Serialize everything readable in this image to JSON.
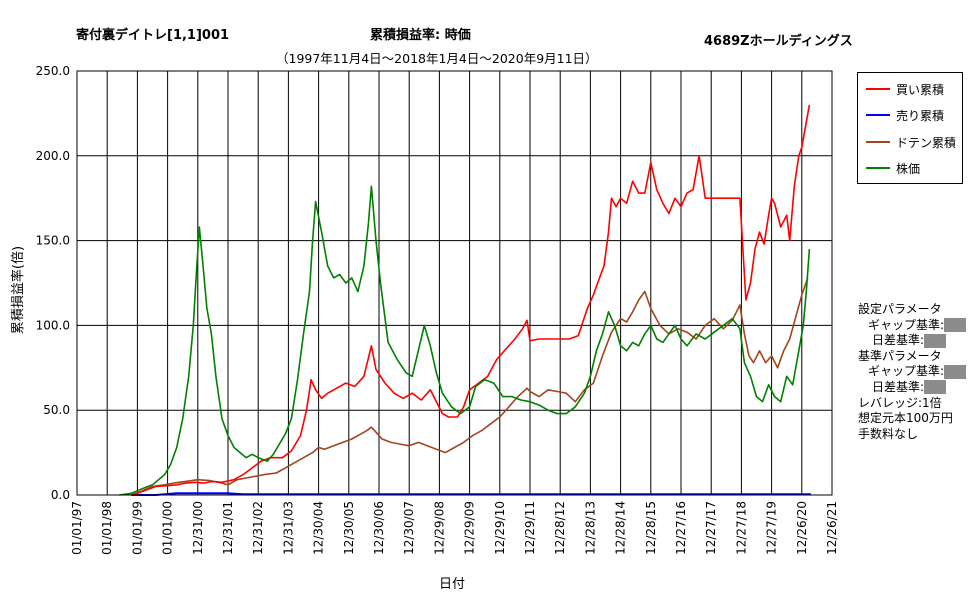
{
  "header": {
    "left_title": "寄付裏デイトレ[1,1]001",
    "center_title": "累積損益率:  時価",
    "right_title": "4689Zホールディングス",
    "subtitle": "（1997年11月4日～2018年1月4日～2020年9月11日）"
  },
  "params": {
    "lines": [
      "設定パラメータ",
      "ギャップ基準:",
      "日差基準:",
      "基準パラメータ",
      "ギャップ基準:",
      "日差基準:",
      "レバレッジ:1倍",
      "想定元本100万円",
      "手数料なし"
    ]
  },
  "colors": {
    "buy": "#ff0000",
    "sell": "#0000ff",
    "doten": "#a0461e",
    "price": "#008000",
    "grid": "#000000",
    "redacted": "#8c8c8c"
  },
  "chart_data": {
    "type": "line",
    "xlabel": "日付",
    "ylabel": "累積損益率(倍)",
    "ylim": [
      0,
      250
    ],
    "ytick_labels": [
      "0.0",
      "50.0",
      "100.0",
      "150.0",
      "200.0",
      "250.0"
    ],
    "xtick_labels": [
      "01/01/97",
      "01/01/98",
      "01/01/99",
      "01/01/00",
      "12/31/00",
      "12/31/01",
      "12/31/02",
      "12/31/03",
      "12/30/04",
      "12/30/05",
      "12/30/06",
      "12/30/07",
      "12/29/08",
      "12/29/09",
      "12/29/10",
      "12/29/11",
      "12/28/12",
      "12/28/13",
      "12/28/14",
      "12/28/15",
      "12/27/16",
      "12/27/17",
      "12/27/18",
      "12/27/19",
      "12/26/20",
      "12/26/21"
    ],
    "grid": true,
    "legend_position": "right",
    "series": [
      {
        "name": "買い累積",
        "key": "buy",
        "points": [
          [
            1.8,
            0
          ],
          [
            2,
            1
          ],
          [
            2.3,
            3
          ],
          [
            2.6,
            5
          ],
          [
            3,
            5.5
          ],
          [
            3.3,
            6
          ],
          [
            3.6,
            7
          ],
          [
            3.9,
            7.5
          ],
          [
            4.2,
            7
          ],
          [
            4.5,
            8
          ],
          [
            4.8,
            7.5
          ],
          [
            5.2,
            9
          ],
          [
            5.5,
            12
          ],
          [
            5.8,
            16
          ],
          [
            6.1,
            20
          ],
          [
            6.4,
            22
          ],
          [
            6.8,
            22
          ],
          [
            7.1,
            26
          ],
          [
            7.4,
            35
          ],
          [
            7.6,
            50
          ],
          [
            7.75,
            68
          ],
          [
            7.9,
            62
          ],
          [
            8.1,
            57
          ],
          [
            8.3,
            60
          ],
          [
            8.6,
            63
          ],
          [
            8.9,
            66
          ],
          [
            9.2,
            64
          ],
          [
            9.5,
            70
          ],
          [
            9.75,
            88
          ],
          [
            9.9,
            74
          ],
          [
            10.2,
            66
          ],
          [
            10.5,
            60
          ],
          [
            10.8,
            57
          ],
          [
            11.1,
            60
          ],
          [
            11.4,
            56
          ],
          [
            11.7,
            62
          ],
          [
            11.9,
            55
          ],
          [
            12.1,
            48
          ],
          [
            12.3,
            46
          ],
          [
            12.6,
            46
          ],
          [
            12.8,
            52
          ],
          [
            13.0,
            62
          ],
          [
            13.3,
            66
          ],
          [
            13.6,
            70
          ],
          [
            13.9,
            80
          ],
          [
            14.2,
            86
          ],
          [
            14.5,
            92
          ],
          [
            14.75,
            98
          ],
          [
            14.9,
            103
          ],
          [
            15.0,
            91
          ],
          [
            15.3,
            92
          ],
          [
            15.7,
            92
          ],
          [
            16.0,
            92
          ],
          [
            16.3,
            92
          ],
          [
            16.6,
            94
          ],
          [
            16.9,
            110
          ],
          [
            17.1,
            118
          ],
          [
            17.3,
            128
          ],
          [
            17.45,
            135
          ],
          [
            17.6,
            155
          ],
          [
            17.7,
            175
          ],
          [
            17.85,
            170
          ],
          [
            18.0,
            175
          ],
          [
            18.2,
            172
          ],
          [
            18.4,
            185
          ],
          [
            18.6,
            178
          ],
          [
            18.8,
            178
          ],
          [
            19.0,
            196
          ],
          [
            19.2,
            180
          ],
          [
            19.4,
            172
          ],
          [
            19.6,
            166
          ],
          [
            19.8,
            175
          ],
          [
            20.0,
            170
          ],
          [
            20.2,
            178
          ],
          [
            20.4,
            180
          ],
          [
            20.6,
            200
          ],
          [
            20.7,
            188
          ],
          [
            20.8,
            175
          ],
          [
            21.2,
            175
          ],
          [
            21.6,
            175
          ],
          [
            21.95,
            175
          ],
          [
            22.05,
            145
          ],
          [
            22.15,
            115
          ],
          [
            22.3,
            125
          ],
          [
            22.45,
            145
          ],
          [
            22.6,
            155
          ],
          [
            22.75,
            148
          ],
          [
            22.9,
            165
          ],
          [
            23.0,
            175
          ],
          [
            23.1,
            172
          ],
          [
            23.3,
            158
          ],
          [
            23.5,
            165
          ],
          [
            23.6,
            150
          ],
          [
            23.75,
            182
          ],
          [
            23.9,
            200
          ],
          [
            24.0,
            205
          ],
          [
            24.1,
            215
          ],
          [
            24.25,
            230
          ]
        ]
      },
      {
        "name": "売り累積",
        "key": "sell",
        "points": [
          [
            1.8,
            0
          ],
          [
            2,
            0
          ],
          [
            2.3,
            0
          ],
          [
            2.6,
            0
          ],
          [
            2.9,
            0.5
          ],
          [
            3.3,
            1
          ],
          [
            4.0,
            1
          ],
          [
            4.5,
            1
          ],
          [
            5.0,
            1
          ],
          [
            5.5,
            0.5
          ],
          [
            6.0,
            0.5
          ],
          [
            8.0,
            0.5
          ],
          [
            12.0,
            0.5
          ],
          [
            16.0,
            0.5
          ],
          [
            20.0,
            0.5
          ],
          [
            24.3,
            0.5
          ]
        ]
      },
      {
        "name": "ドテン累積",
        "key": "doten",
        "points": [
          [
            1.8,
            0
          ],
          [
            2.1,
            2
          ],
          [
            2.5,
            5
          ],
          [
            2.9,
            6
          ],
          [
            3.2,
            7
          ],
          [
            3.6,
            8
          ],
          [
            4.0,
            9
          ],
          [
            4.4,
            8.5
          ],
          [
            4.8,
            7
          ],
          [
            5.0,
            6
          ],
          [
            5.3,
            9
          ],
          [
            5.6,
            10
          ],
          [
            5.9,
            11
          ],
          [
            6.2,
            12
          ],
          [
            6.6,
            13
          ],
          [
            6.9,
            16
          ],
          [
            7.2,
            19
          ],
          [
            7.5,
            22
          ],
          [
            7.8,
            25
          ],
          [
            8.0,
            28
          ],
          [
            8.2,
            27
          ],
          [
            8.5,
            29
          ],
          [
            8.8,
            31
          ],
          [
            9.1,
            33
          ],
          [
            9.4,
            36
          ],
          [
            9.6,
            38
          ],
          [
            9.75,
            40
          ],
          [
            9.9,
            37
          ],
          [
            10.1,
            33
          ],
          [
            10.4,
            31
          ],
          [
            10.7,
            30
          ],
          [
            11.0,
            29
          ],
          [
            11.3,
            31
          ],
          [
            11.6,
            29
          ],
          [
            11.9,
            27
          ],
          [
            12.2,
            25
          ],
          [
            12.5,
            28
          ],
          [
            12.8,
            31
          ],
          [
            13.1,
            35
          ],
          [
            13.4,
            38
          ],
          [
            13.7,
            42
          ],
          [
            14.0,
            46
          ],
          [
            14.3,
            52
          ],
          [
            14.6,
            58
          ],
          [
            14.9,
            63
          ],
          [
            15.0,
            61
          ],
          [
            15.3,
            58
          ],
          [
            15.6,
            62
          ],
          [
            15.9,
            61
          ],
          [
            16.2,
            60
          ],
          [
            16.5,
            55
          ],
          [
            16.8,
            62
          ],
          [
            17.1,
            66
          ],
          [
            17.4,
            82
          ],
          [
            17.7,
            96
          ],
          [
            18.0,
            104
          ],
          [
            18.2,
            102
          ],
          [
            18.4,
            108
          ],
          [
            18.6,
            115
          ],
          [
            18.8,
            120
          ],
          [
            19.0,
            110
          ],
          [
            19.3,
            100
          ],
          [
            19.6,
            95
          ],
          [
            19.9,
            98
          ],
          [
            20.2,
            96
          ],
          [
            20.5,
            92
          ],
          [
            20.8,
            100
          ],
          [
            21.1,
            104
          ],
          [
            21.4,
            98
          ],
          [
            21.7,
            103
          ],
          [
            21.95,
            112
          ],
          [
            22.1,
            95
          ],
          [
            22.25,
            82
          ],
          [
            22.4,
            78
          ],
          [
            22.6,
            85
          ],
          [
            22.8,
            78
          ],
          [
            23.0,
            82
          ],
          [
            23.2,
            75
          ],
          [
            23.4,
            85
          ],
          [
            23.6,
            92
          ],
          [
            23.8,
            105
          ],
          [
            24.0,
            118
          ],
          [
            24.2,
            128
          ]
        ]
      },
      {
        "name": "株価",
        "key": "price",
        "points": [
          [
            1.4,
            0
          ],
          [
            1.8,
            1
          ],
          [
            2.2,
            4
          ],
          [
            2.5,
            6
          ],
          [
            2.9,
            12
          ],
          [
            3.1,
            18
          ],
          [
            3.3,
            28
          ],
          [
            3.5,
            45
          ],
          [
            3.7,
            70
          ],
          [
            3.85,
            100
          ],
          [
            3.95,
            130
          ],
          [
            4.05,
            158
          ],
          [
            4.15,
            140
          ],
          [
            4.3,
            110
          ],
          [
            4.45,
            95
          ],
          [
            4.6,
            70
          ],
          [
            4.8,
            45
          ],
          [
            5.0,
            35
          ],
          [
            5.2,
            28
          ],
          [
            5.4,
            25
          ],
          [
            5.6,
            22
          ],
          [
            5.8,
            24
          ],
          [
            6.0,
            22
          ],
          [
            6.3,
            20
          ],
          [
            6.5,
            24
          ],
          [
            6.7,
            30
          ],
          [
            6.9,
            36
          ],
          [
            7.1,
            45
          ],
          [
            7.3,
            68
          ],
          [
            7.5,
            95
          ],
          [
            7.7,
            120
          ],
          [
            7.8,
            150
          ],
          [
            7.9,
            173
          ],
          [
            8.1,
            155
          ],
          [
            8.3,
            135
          ],
          [
            8.5,
            128
          ],
          [
            8.7,
            130
          ],
          [
            8.9,
            125
          ],
          [
            9.1,
            128
          ],
          [
            9.3,
            120
          ],
          [
            9.5,
            135
          ],
          [
            9.65,
            160
          ],
          [
            9.75,
            182
          ],
          [
            9.9,
            150
          ],
          [
            10.05,
            125
          ],
          [
            10.3,
            90
          ],
          [
            10.6,
            80
          ],
          [
            10.9,
            72
          ],
          [
            11.1,
            70
          ],
          [
            11.3,
            85
          ],
          [
            11.5,
            100
          ],
          [
            11.7,
            88
          ],
          [
            11.9,
            72
          ],
          [
            12.1,
            60
          ],
          [
            12.4,
            52
          ],
          [
            12.7,
            48
          ],
          [
            13.0,
            52
          ],
          [
            13.2,
            64
          ],
          [
            13.5,
            68
          ],
          [
            13.8,
            66
          ],
          [
            14.1,
            58
          ],
          [
            14.4,
            58
          ],
          [
            14.7,
            56
          ],
          [
            15.0,
            55
          ],
          [
            15.3,
            53
          ],
          [
            15.6,
            50
          ],
          [
            15.9,
            48
          ],
          [
            16.2,
            48
          ],
          [
            16.5,
            52
          ],
          [
            16.8,
            60
          ],
          [
            17.0,
            70
          ],
          [
            17.2,
            85
          ],
          [
            17.4,
            95
          ],
          [
            17.6,
            108
          ],
          [
            17.8,
            100
          ],
          [
            18.0,
            88
          ],
          [
            18.2,
            85
          ],
          [
            18.4,
            90
          ],
          [
            18.6,
            88
          ],
          [
            18.8,
            95
          ],
          [
            19.0,
            100
          ],
          [
            19.2,
            92
          ],
          [
            19.4,
            90
          ],
          [
            19.6,
            95
          ],
          [
            19.8,
            100
          ],
          [
            20.0,
            92
          ],
          [
            20.2,
            88
          ],
          [
            20.5,
            95
          ],
          [
            20.8,
            92
          ],
          [
            21.1,
            96
          ],
          [
            21.4,
            100
          ],
          [
            21.7,
            104
          ],
          [
            21.95,
            98
          ],
          [
            22.1,
            78
          ],
          [
            22.3,
            70
          ],
          [
            22.5,
            58
          ],
          [
            22.7,
            55
          ],
          [
            22.9,
            65
          ],
          [
            23.1,
            58
          ],
          [
            23.3,
            55
          ],
          [
            23.5,
            70
          ],
          [
            23.7,
            65
          ],
          [
            23.9,
            85
          ],
          [
            24.05,
            100
          ],
          [
            24.15,
            120
          ],
          [
            24.25,
            145
          ]
        ]
      }
    ]
  }
}
